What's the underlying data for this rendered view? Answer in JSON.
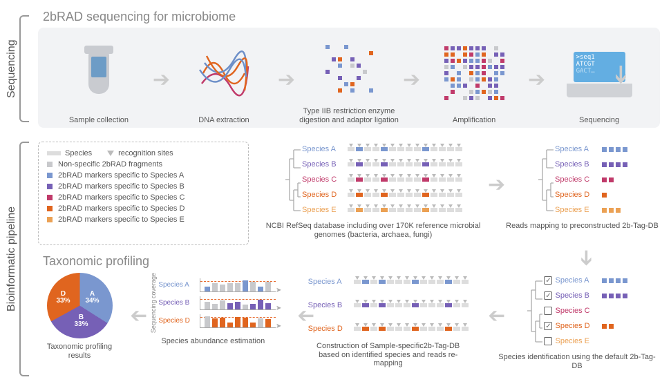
{
  "palette": {
    "speciesA": "#7a97cf",
    "speciesB": "#7660b6",
    "speciesC": "#c03a6a",
    "speciesD": "#e0651f",
    "speciesE": "#eba154",
    "nonspecific": "#c8c9cc",
    "background": "#f2f3f5",
    "text": "#555555",
    "arrow": "#cccccc",
    "screen": "#63aee2"
  },
  "sections": {
    "sequencing_label": "Sequencing",
    "bioinfo_label": "Bioinformatic pipeline",
    "seq_title": "2bRAD sequencing for microbiome",
    "seq_steps": [
      "Sample collection",
      "DNA extraction",
      "Type IIB restriction enzyme digestion and adaptor ligation",
      "Amplification",
      "Sequencing"
    ],
    "sequencer_lines": [
      ">seq1",
      "ATCGT",
      "GACT…"
    ]
  },
  "legend": {
    "header_left": "Species",
    "header_right": "recognition sites",
    "items": [
      {
        "color": "#c8c9cc",
        "text": "Non-specific 2bRAD fragments"
      },
      {
        "color": "#7a97cf",
        "text": "2bRAD markers specific to Species A"
      },
      {
        "color": "#7660b6",
        "text": "2bRAD markers specific to Species B"
      },
      {
        "color": "#c03a6a",
        "text": "2bRAD markers specific to Species C"
      },
      {
        "color": "#e0651f",
        "text": "2bRAD markers specific to Species D"
      },
      {
        "color": "#eba154",
        "text": "2bRAD markers specific to Species E"
      }
    ]
  },
  "species": [
    {
      "name": "Species A",
      "color": "#7a97cf"
    },
    {
      "name": "Species B",
      "color": "#7660b6"
    },
    {
      "name": "Species C",
      "color": "#c03a6a"
    },
    {
      "name": "Species D",
      "color": "#e0651f"
    },
    {
      "name": "Species E",
      "color": "#eba154"
    }
  ],
  "mid_panel_caption": "NCBI RefSeq database including over 170K reference microbial genomes (bacteria, archaea, fungi)",
  "right_panel_caption": "Reads mapping to preconstructed 2b-Tag-DB",
  "right_panel_markers": {
    "Species A": [
      "#7a97cf",
      "#7a97cf",
      "#7a97cf",
      "#7a97cf"
    ],
    "Species B": [
      "#7660b6",
      "#7660b6",
      "#7660b6",
      "#7660b6"
    ],
    "Species C": [
      "#c03a6a",
      "#c03a6a"
    ],
    "Species D": [
      "#e0651f"
    ],
    "Species E": [
      "#eba154",
      "#eba154",
      "#eba154"
    ]
  },
  "ident": {
    "caption": "Species identification using the default 2b-Tag-DB",
    "rows": [
      {
        "name": "Species A",
        "color": "#7a97cf",
        "checked": true,
        "markers": [
          "#7a97cf",
          "#7a97cf",
          "#7a97cf",
          "#7a97cf"
        ]
      },
      {
        "name": "Species B",
        "color": "#7660b6",
        "checked": true,
        "markers": [
          "#7660b6",
          "#7660b6",
          "#7660b6",
          "#7660b6"
        ]
      },
      {
        "name": "Species C",
        "color": "#c03a6a",
        "checked": false,
        "markers": []
      },
      {
        "name": "Species D",
        "color": "#e0651f",
        "checked": true,
        "markers": [
          "#e0651f",
          "#e0651f"
        ]
      },
      {
        "name": "Species E",
        "color": "#eba154",
        "checked": false,
        "markers": []
      }
    ]
  },
  "sample_db_caption": "Construction of Sample-specific2b-Tag-DB based on identified species and reads re-mapping",
  "sample_db_rows": [
    {
      "name": "Species A",
      "color": "#7a97cf"
    },
    {
      "name": "Species B",
      "color": "#7660b6"
    },
    {
      "name": "Species D",
      "color": "#e0651f"
    }
  ],
  "abundance": {
    "caption": "Species abundance estimation",
    "axis_label": "Sequencing coverage",
    "rows": [
      {
        "name": "Species A",
        "color": "#7a97cf",
        "dash": "#e76b2e"
      },
      {
        "name": "Species B",
        "color": "#7660b6",
        "dash": "#e76b2e"
      },
      {
        "name": "Species D",
        "color": "#e0651f",
        "dash": "#e76b2e"
      }
    ]
  },
  "pie": {
    "caption": "Taxonomic profiling results",
    "slices": [
      {
        "label": "A",
        "pct": 34,
        "color": "#7a97cf"
      },
      {
        "label": "B",
        "pct": 33,
        "color": "#7660b6"
      },
      {
        "label": "D",
        "pct": 33,
        "color": "#e0651f"
      }
    ]
  },
  "taxo_title": "Taxonomic  profiling"
}
